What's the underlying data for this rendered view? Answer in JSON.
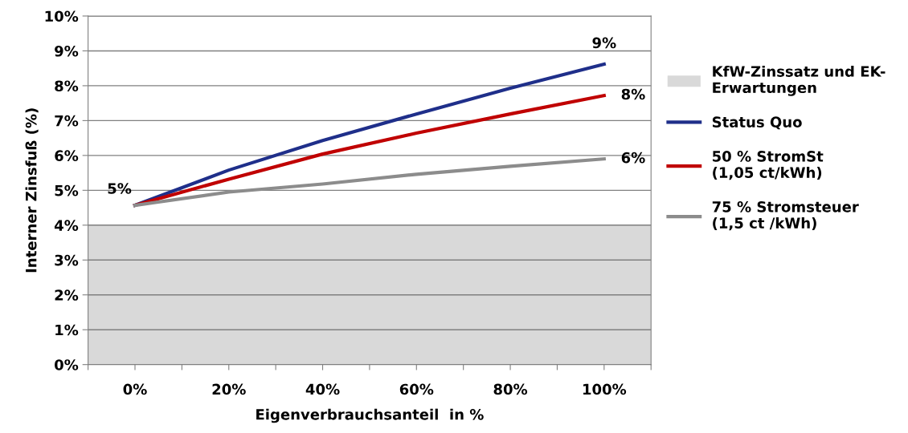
{
  "chart_data": {
    "type": "line",
    "xlabel": "Eigenverbrauchsanteil  in %",
    "ylabel": "Interner Zinsfuß (%)",
    "x": [
      0,
      20,
      40,
      60,
      80,
      100
    ],
    "series": [
      {
        "name": "Status Quo",
        "color": "#1f2f8a",
        "values": [
          4.57,
          5.58,
          6.43,
          7.19,
          7.93,
          8.62
        ]
      },
      {
        "name": "50 % StromSt\n(1,05 ct/kWh)",
        "color": "#c00000",
        "values": [
          4.57,
          5.32,
          6.04,
          6.64,
          7.19,
          7.72
        ]
      },
      {
        "name": "75 % Stromsteuer\n(1,5 ct /kWh)",
        "color": "#8c8c8c",
        "values": [
          4.57,
          4.95,
          5.18,
          5.46,
          5.69,
          5.9
        ]
      }
    ],
    "bands": [
      {
        "axis": "y",
        "from": 0,
        "to": 4,
        "label": "KfW-Zinssatz und EK-\nErwartungen",
        "color": "#d9d9d9"
      }
    ],
    "annotations": [
      "5%",
      "9%",
      "8%",
      "6%"
    ],
    "xlim": [
      -10,
      110
    ],
    "xticks": [
      {
        "value": -10,
        "label": null
      },
      {
        "value": 0,
        "label": "0%"
      },
      {
        "value": 10,
        "label": null
      },
      {
        "value": 20,
        "label": "20%"
      },
      {
        "value": 30,
        "label": null
      },
      {
        "value": 40,
        "label": "40%"
      },
      {
        "value": 50,
        "label": null
      },
      {
        "value": 60,
        "label": "60%"
      },
      {
        "value": 70,
        "label": null
      },
      {
        "value": 80,
        "label": "80%"
      },
      {
        "value": 90,
        "label": null
      },
      {
        "value": 100,
        "label": "100%"
      },
      {
        "value": 110,
        "label": null
      }
    ],
    "ylim": [
      0,
      10
    ],
    "yticks": [
      {
        "value": 0,
        "label": "0%"
      },
      {
        "value": 1,
        "label": "1%"
      },
      {
        "value": 2,
        "label": "2%"
      },
      {
        "value": 3,
        "label": "3%"
      },
      {
        "value": 4,
        "label": "4%"
      },
      {
        "value": 5,
        "label": "5%"
      },
      {
        "value": 6,
        "label": "6%"
      },
      {
        "value": 7,
        "label": "7%"
      },
      {
        "value": 8,
        "label": "8%"
      },
      {
        "value": 9,
        "label": "9%"
      },
      {
        "value": 10,
        "label": "10%"
      }
    ],
    "grid": "y",
    "legend": "right",
    "marker": "none",
    "line_style": "solid"
  }
}
